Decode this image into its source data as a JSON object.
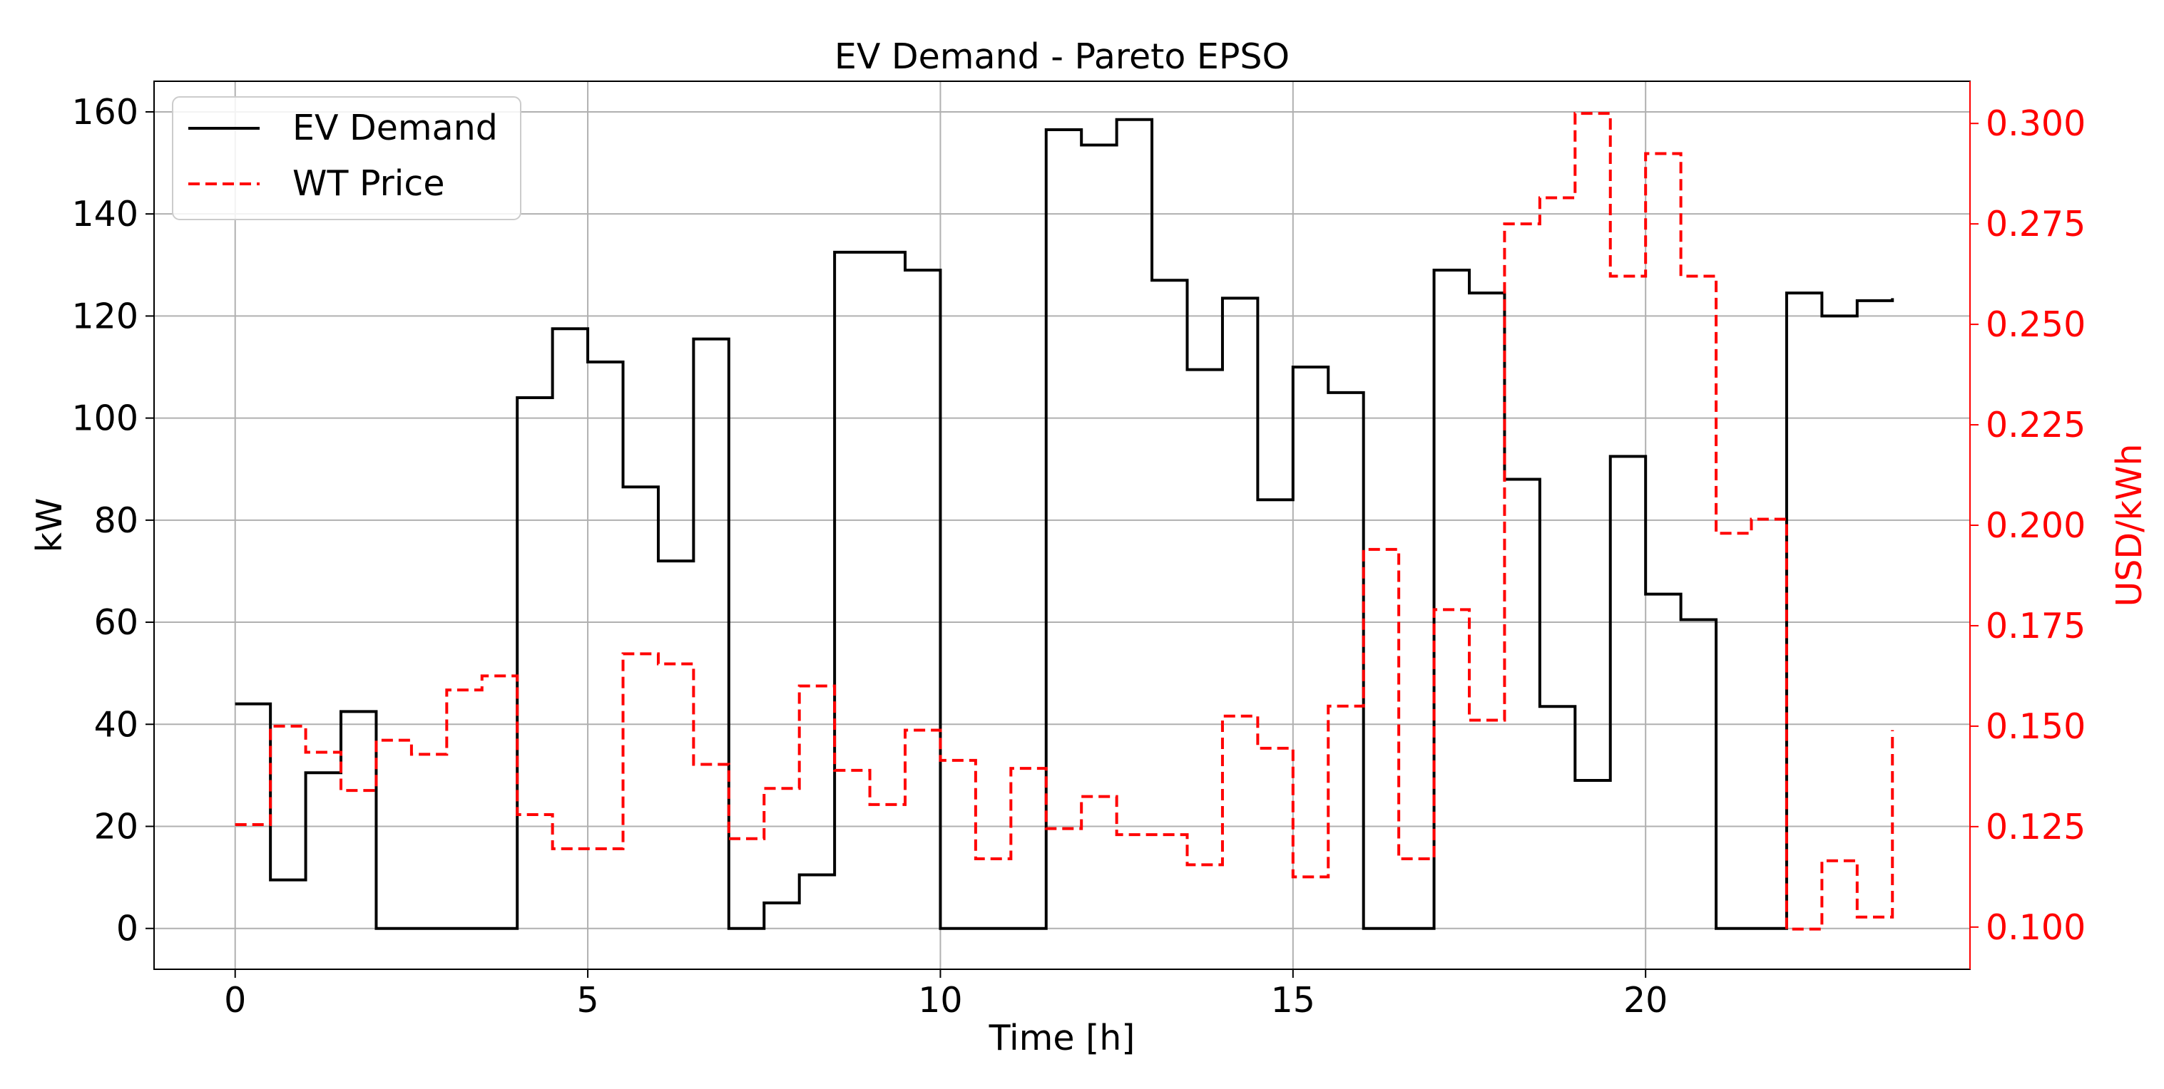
{
  "chart_data": {
    "type": "line",
    "title": "EV Demand - Pareto EPSO",
    "xlabel": "Time [h]",
    "ylabel": "kW",
    "ylabel_right": "USD/kWh",
    "xlim": [
      -1.15,
      24.6
    ],
    "ylim": [
      -8,
      166
    ],
    "ylim_right": [
      0.0895,
      0.3105
    ],
    "x_ticks": [
      0,
      5,
      10,
      15,
      20
    ],
    "y_ticks": [
      0,
      20,
      40,
      60,
      80,
      100,
      120,
      140,
      160
    ],
    "y_ticks_right": [
      0.1,
      0.125,
      0.15,
      0.175,
      0.2,
      0.225,
      0.25,
      0.275,
      0.3
    ],
    "y_tick_labels_right": [
      "0.100",
      "0.125",
      "0.150",
      "0.175",
      "0.200",
      "0.225",
      "0.250",
      "0.275",
      "0.300"
    ],
    "grid": true,
    "legend_location": "upper-left",
    "step": "post",
    "x": [
      0,
      0.5,
      1,
      1.5,
      2,
      2.5,
      3,
      3.5,
      4,
      4.5,
      5,
      5.5,
      6,
      6.5,
      7,
      7.5,
      8,
      8.5,
      9,
      9.5,
      10,
      10.5,
      11,
      11.5,
      12,
      12.5,
      13,
      13.5,
      14,
      14.5,
      15,
      15.5,
      16,
      16.5,
      17,
      17.5,
      18,
      18.5,
      19,
      19.5,
      20,
      20.5,
      21,
      21.5,
      22,
      22.5,
      23,
      23.5
    ],
    "series": [
      {
        "name": "EV Demand",
        "axis": "left",
        "color": "#000000",
        "style": "solid",
        "values": [
          44,
          9.5,
          30.5,
          42.5,
          0,
          0,
          0,
          0,
          104,
          117.5,
          111,
          86.5,
          72,
          115.5,
          0,
          5,
          10.5,
          132.5,
          132.5,
          129,
          0,
          0,
          0,
          156.5,
          153.5,
          158.5,
          127,
          109.5,
          123.5,
          84,
          110,
          105,
          0,
          0,
          129,
          124.5,
          88,
          43.5,
          29,
          92.5,
          65.5,
          60.5,
          0,
          0,
          124.5,
          120,
          123,
          123.5
        ]
      },
      {
        "name": "WT Price",
        "axis": "right",
        "color": "#ff0000",
        "style": "dashed",
        "values": [
          0.1255,
          0.15,
          0.1435,
          0.134,
          0.1465,
          0.143,
          0.159,
          0.1625,
          0.128,
          0.1195,
          0.1195,
          0.168,
          0.1655,
          0.1405,
          0.122,
          0.1345,
          0.16,
          0.139,
          0.1305,
          0.149,
          0.1415,
          0.117,
          0.1395,
          0.1245,
          0.1325,
          0.123,
          0.123,
          0.1155,
          0.1525,
          0.1445,
          0.1125,
          0.155,
          0.194,
          0.117,
          0.179,
          0.1515,
          0.275,
          0.2815,
          0.3025,
          0.262,
          0.2925,
          0.262,
          0.198,
          0.2015,
          0.0995,
          0.1165,
          0.1025,
          0.149
        ]
      }
    ]
  }
}
